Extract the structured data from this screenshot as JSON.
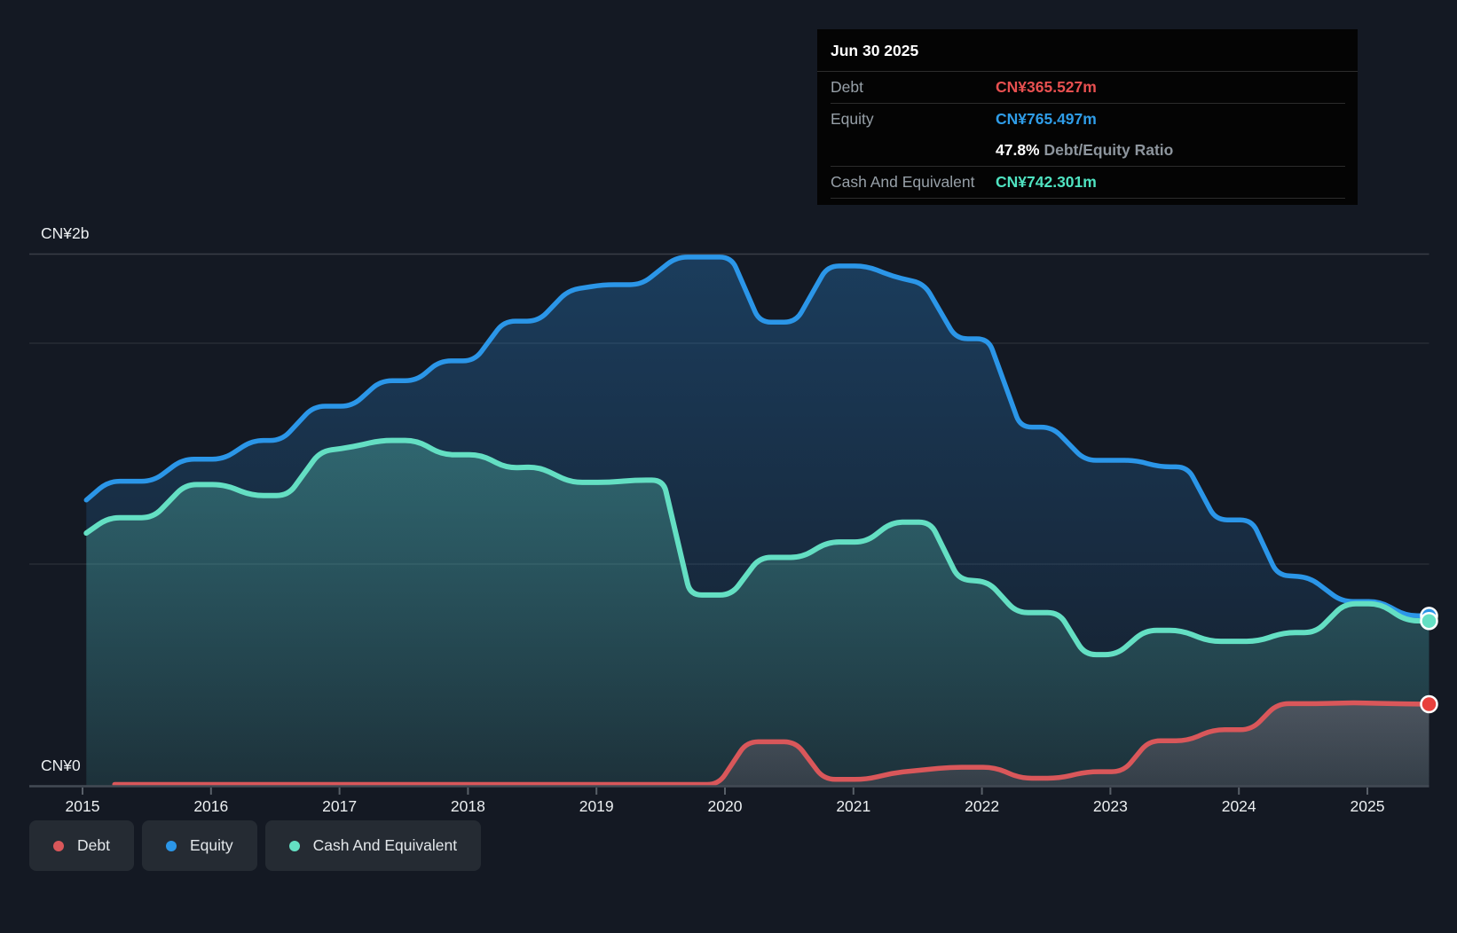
{
  "tooltip": {
    "date": "Jun 30 2025",
    "debt_label": "Debt",
    "debt_value": "CN¥365.527m",
    "equity_label": "Equity",
    "equity_value": "CN¥765.497m",
    "ratio_value": "47.8%",
    "ratio_label": "Debt/Equity Ratio",
    "cash_label": "Cash And Equivalent",
    "cash_value": "CN¥742.301m"
  },
  "legend": {
    "items": [
      {
        "label": "Debt",
        "color_key": "debt"
      },
      {
        "label": "Equity",
        "color_key": "equity"
      },
      {
        "label": "Cash And Equivalent",
        "color_key": "cash"
      }
    ]
  },
  "axis": {
    "y_top_label": "CN¥2b",
    "y_zero_label": "CN¥0",
    "x_ticks": [
      "2015",
      "2016",
      "2017",
      "2018",
      "2019",
      "2020",
      "2021",
      "2022",
      "2023",
      "2024",
      "2025"
    ]
  },
  "colors": {
    "debt": "#d9575a",
    "equity": "#2b96e8",
    "cash": "#64dfc3",
    "debt_marker": "#e8403c",
    "background": "#141923",
    "tooltip_bg": "#040404",
    "gridline": "rgba(255,255,255,0.10)"
  },
  "chart_data": {
    "type": "area",
    "title": "Debt to Equity History and Analysis",
    "unit": "CN¥ millions",
    "x_range": [
      2015.0,
      2025.5
    ],
    "ylim_m": [
      0,
      2400
    ],
    "y_gridlines_m": [
      2000,
      1000
    ],
    "legend_position": "bottom-left",
    "as_of": "Jun 30 2025",
    "debt_equity_ratio": "47.8%",
    "last_values_m": {
      "debt": 365.527,
      "equity": 765.497,
      "cash_and_equivalent": 742.301
    },
    "series": [
      {
        "name": "Equity",
        "color_key": "equity",
        "points": [
          [
            2015.03,
            1290
          ],
          [
            2015.2,
            1375
          ],
          [
            2015.55,
            1375
          ],
          [
            2015.78,
            1475
          ],
          [
            2016.1,
            1475
          ],
          [
            2016.32,
            1560
          ],
          [
            2016.55,
            1560
          ],
          [
            2016.8,
            1715
          ],
          [
            2017.1,
            1715
          ],
          [
            2017.32,
            1830
          ],
          [
            2017.6,
            1830
          ],
          [
            2017.78,
            1920
          ],
          [
            2018.05,
            1920
          ],
          [
            2018.28,
            2100
          ],
          [
            2018.55,
            2100
          ],
          [
            2018.78,
            2240
          ],
          [
            2019.05,
            2265
          ],
          [
            2019.35,
            2265
          ],
          [
            2019.62,
            2390
          ],
          [
            2020.05,
            2390
          ],
          [
            2020.27,
            2095
          ],
          [
            2020.55,
            2095
          ],
          [
            2020.8,
            2350
          ],
          [
            2021.1,
            2350
          ],
          [
            2021.32,
            2300
          ],
          [
            2021.55,
            2270
          ],
          [
            2021.8,
            2020
          ],
          [
            2022.05,
            2020
          ],
          [
            2022.3,
            1620
          ],
          [
            2022.55,
            1620
          ],
          [
            2022.8,
            1470
          ],
          [
            2023.2,
            1470
          ],
          [
            2023.38,
            1440
          ],
          [
            2023.6,
            1440
          ],
          [
            2023.82,
            1200
          ],
          [
            2024.1,
            1200
          ],
          [
            2024.3,
            950
          ],
          [
            2024.55,
            940
          ],
          [
            2024.8,
            830
          ],
          [
            2025.1,
            830
          ],
          [
            2025.3,
            766
          ],
          [
            2025.48,
            765.497
          ]
        ]
      },
      {
        "name": "Cash And Equivalent",
        "color_key": "cash",
        "points": [
          [
            2015.03,
            1140
          ],
          [
            2015.2,
            1210
          ],
          [
            2015.55,
            1210
          ],
          [
            2015.8,
            1360
          ],
          [
            2016.1,
            1360
          ],
          [
            2016.32,
            1310
          ],
          [
            2016.6,
            1310
          ],
          [
            2016.85,
            1510
          ],
          [
            2017.1,
            1530
          ],
          [
            2017.32,
            1560
          ],
          [
            2017.6,
            1560
          ],
          [
            2017.8,
            1495
          ],
          [
            2018.1,
            1495
          ],
          [
            2018.3,
            1435
          ],
          [
            2018.55,
            1440
          ],
          [
            2018.8,
            1370
          ],
          [
            2019.1,
            1370
          ],
          [
            2019.3,
            1380
          ],
          [
            2019.52,
            1380
          ],
          [
            2019.73,
            860
          ],
          [
            2020.05,
            860
          ],
          [
            2020.27,
            1030
          ],
          [
            2020.6,
            1030
          ],
          [
            2020.8,
            1100
          ],
          [
            2021.1,
            1100
          ],
          [
            2021.3,
            1190
          ],
          [
            2021.6,
            1190
          ],
          [
            2021.82,
            930
          ],
          [
            2022.05,
            920
          ],
          [
            2022.27,
            780
          ],
          [
            2022.6,
            780
          ],
          [
            2022.8,
            590
          ],
          [
            2023.05,
            590
          ],
          [
            2023.27,
            700
          ],
          [
            2023.55,
            700
          ],
          [
            2023.77,
            650
          ],
          [
            2024.15,
            650
          ],
          [
            2024.35,
            690
          ],
          [
            2024.6,
            690
          ],
          [
            2024.82,
            820
          ],
          [
            2025.1,
            820
          ],
          [
            2025.3,
            744
          ],
          [
            2025.48,
            742.301
          ]
        ]
      },
      {
        "name": "Debt",
        "color_key": "debt",
        "points": [
          [
            2015.25,
            2
          ],
          [
            2019.95,
            2
          ],
          [
            2020.17,
            195
          ],
          [
            2020.55,
            195
          ],
          [
            2020.77,
            25
          ],
          [
            2021.1,
            25
          ],
          [
            2021.32,
            55
          ],
          [
            2021.75,
            80
          ],
          [
            2022.1,
            80
          ],
          [
            2022.3,
            30
          ],
          [
            2022.6,
            30
          ],
          [
            2022.82,
            60
          ],
          [
            2023.1,
            60
          ],
          [
            2023.3,
            200
          ],
          [
            2023.6,
            200
          ],
          [
            2023.8,
            250
          ],
          [
            2024.1,
            250
          ],
          [
            2024.3,
            368
          ],
          [
            2024.6,
            368
          ],
          [
            2024.9,
            372
          ],
          [
            2025.2,
            368
          ],
          [
            2025.48,
            365.527
          ]
        ]
      }
    ]
  }
}
